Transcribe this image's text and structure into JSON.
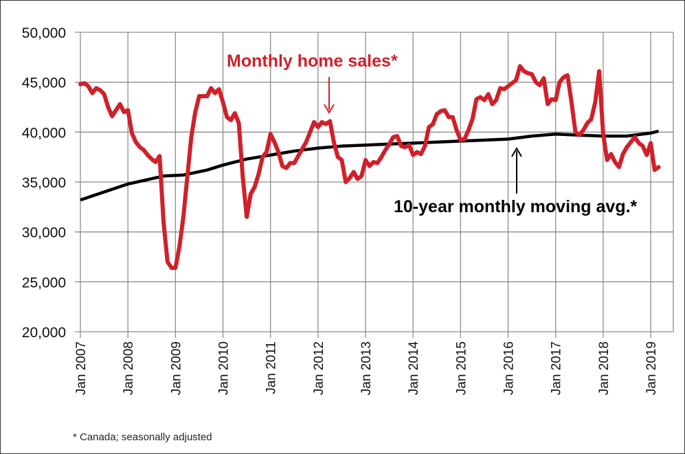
{
  "chart_data": {
    "type": "line",
    "title": "",
    "xlabel": "",
    "ylabel": "",
    "ylim": [
      20000,
      50000
    ],
    "yticks": [
      "20,000",
      "25,000",
      "30,000",
      "35,000",
      "40,000",
      "45,000",
      "50,000"
    ],
    "ytick_values": [
      20000,
      25000,
      30000,
      35000,
      40000,
      45000,
      50000
    ],
    "xticks": [
      "Jan 2007",
      "Jan 2008",
      "Jan 2009",
      "Jan 2010",
      "Jan 2011",
      "Jan 2012",
      "Jan 2013",
      "Jan 2014",
      "Jan 2015",
      "Jan 2016",
      "Jan 2017",
      "Jan 2018",
      "Jan 2019"
    ],
    "grid": true,
    "legend": "none",
    "series": [
      {
        "name": "Monthly home sales*",
        "color": "#d0202a",
        "monthly_by_year": {
          "2007": [
            44800,
            44900,
            44600,
            43900,
            44400,
            44200,
            43800,
            42500,
            41600,
            42200,
            42800,
            42000
          ],
          "2008": [
            42200,
            39900,
            39000,
            38500,
            38200,
            37700,
            37300,
            37000,
            37600,
            31000,
            27000,
            26400
          ],
          "2009": [
            26400,
            28500,
            31500,
            35500,
            39500,
            42000,
            43600,
            43600,
            43600,
            44400,
            43900,
            44300
          ],
          "2010": [
            43000,
            41500,
            41200,
            41900,
            40900,
            35500,
            31500,
            33800,
            34500,
            35800,
            37500,
            38000
          ],
          "2011": [
            39800,
            39000,
            38000,
            36600,
            36400,
            36900,
            36900,
            37600,
            38300,
            39000,
            40000,
            41000
          ],
          "2012": [
            40500,
            41000,
            40800,
            41100,
            39000,
            37500,
            37200,
            35000,
            35400,
            36000,
            35300,
            35600
          ],
          "2013": [
            37200,
            36600,
            37000,
            36900,
            37500,
            38200,
            38800,
            39500,
            39600,
            38600,
            38500,
            38700
          ],
          "2014": [
            37700,
            38000,
            37800,
            38600,
            40500,
            40800,
            41800,
            42100,
            42200,
            41500,
            41500,
            40200
          ],
          "2015": [
            39200,
            39300,
            40200,
            41300,
            43300,
            43500,
            43200,
            43800,
            42800,
            43200,
            44400,
            44300
          ],
          "2016": [
            44600,
            44900,
            45200,
            46600,
            46100,
            45900,
            45800,
            45000,
            44700,
            45400,
            42800,
            43300
          ],
          "2017": [
            43200,
            45000,
            45500,
            45700,
            43000,
            40000,
            39700,
            40200,
            40900,
            41300,
            43000,
            46100
          ],
          "2018": [
            39800,
            37200,
            37800,
            37000,
            36500,
            37800,
            38500,
            39000,
            39500,
            38900,
            38600,
            37700
          ],
          "2019": [
            38900,
            36200,
            36500
          ]
        }
      },
      {
        "name": "10-year monthly moving avg.*",
        "color": "#000000",
        "points": [
          [
            "2007-01",
            33200
          ],
          [
            "2008-01",
            34800
          ],
          [
            "2008-10",
            35600
          ],
          [
            "2009-03",
            35700
          ],
          [
            "2009-09",
            36200
          ],
          [
            "2010-01",
            36700
          ],
          [
            "2010-07",
            37300
          ],
          [
            "2011-01",
            37700
          ],
          [
            "2011-07",
            38100
          ],
          [
            "2012-01",
            38400
          ],
          [
            "2012-07",
            38600
          ],
          [
            "2013-01",
            38700
          ],
          [
            "2013-07",
            38800
          ],
          [
            "2014-01",
            38900
          ],
          [
            "2014-07",
            39000
          ],
          [
            "2015-01",
            39100
          ],
          [
            "2015-07",
            39200
          ],
          [
            "2016-01",
            39300
          ],
          [
            "2016-07",
            39600
          ],
          [
            "2017-01",
            39800
          ],
          [
            "2017-07",
            39700
          ],
          [
            "2018-01",
            39600
          ],
          [
            "2018-07",
            39600
          ],
          [
            "2019-01",
            39900
          ],
          [
            "2019-03",
            40100
          ]
        ]
      }
    ],
    "annotations": {
      "sales_label": "Monthly home sales*",
      "avg_label": "10-year monthly moving avg.*"
    },
    "footnote": "* Canada; seasonally adjusted"
  }
}
